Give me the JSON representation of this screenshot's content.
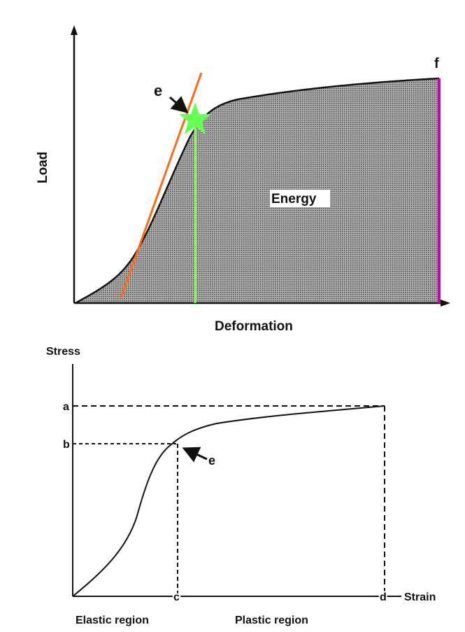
{
  "top_graph": {
    "y_axis_label": "Load",
    "x_axis_label": "Deformation",
    "area_label": "Energy",
    "elastic_limit_label": "e",
    "failure_label": "f",
    "colors": {
      "tangent_line": "#ff6a13",
      "elastic_limit_marker": "#66ff55",
      "elastic_limit_line": "#88ff55",
      "failure_line": "#cc00aa",
      "curve": "#111111",
      "fill": "#9a9a9a"
    }
  },
  "bottom_graph": {
    "y_axis_label": "Stress",
    "x_axis_label": "Strain",
    "point_a": "a",
    "point_b": "b",
    "point_c": "c",
    "point_d": "d",
    "elastic_limit_label": "e",
    "elastic_region_label": "Elastic region",
    "plastic_region_label": "Plastic region"
  }
}
